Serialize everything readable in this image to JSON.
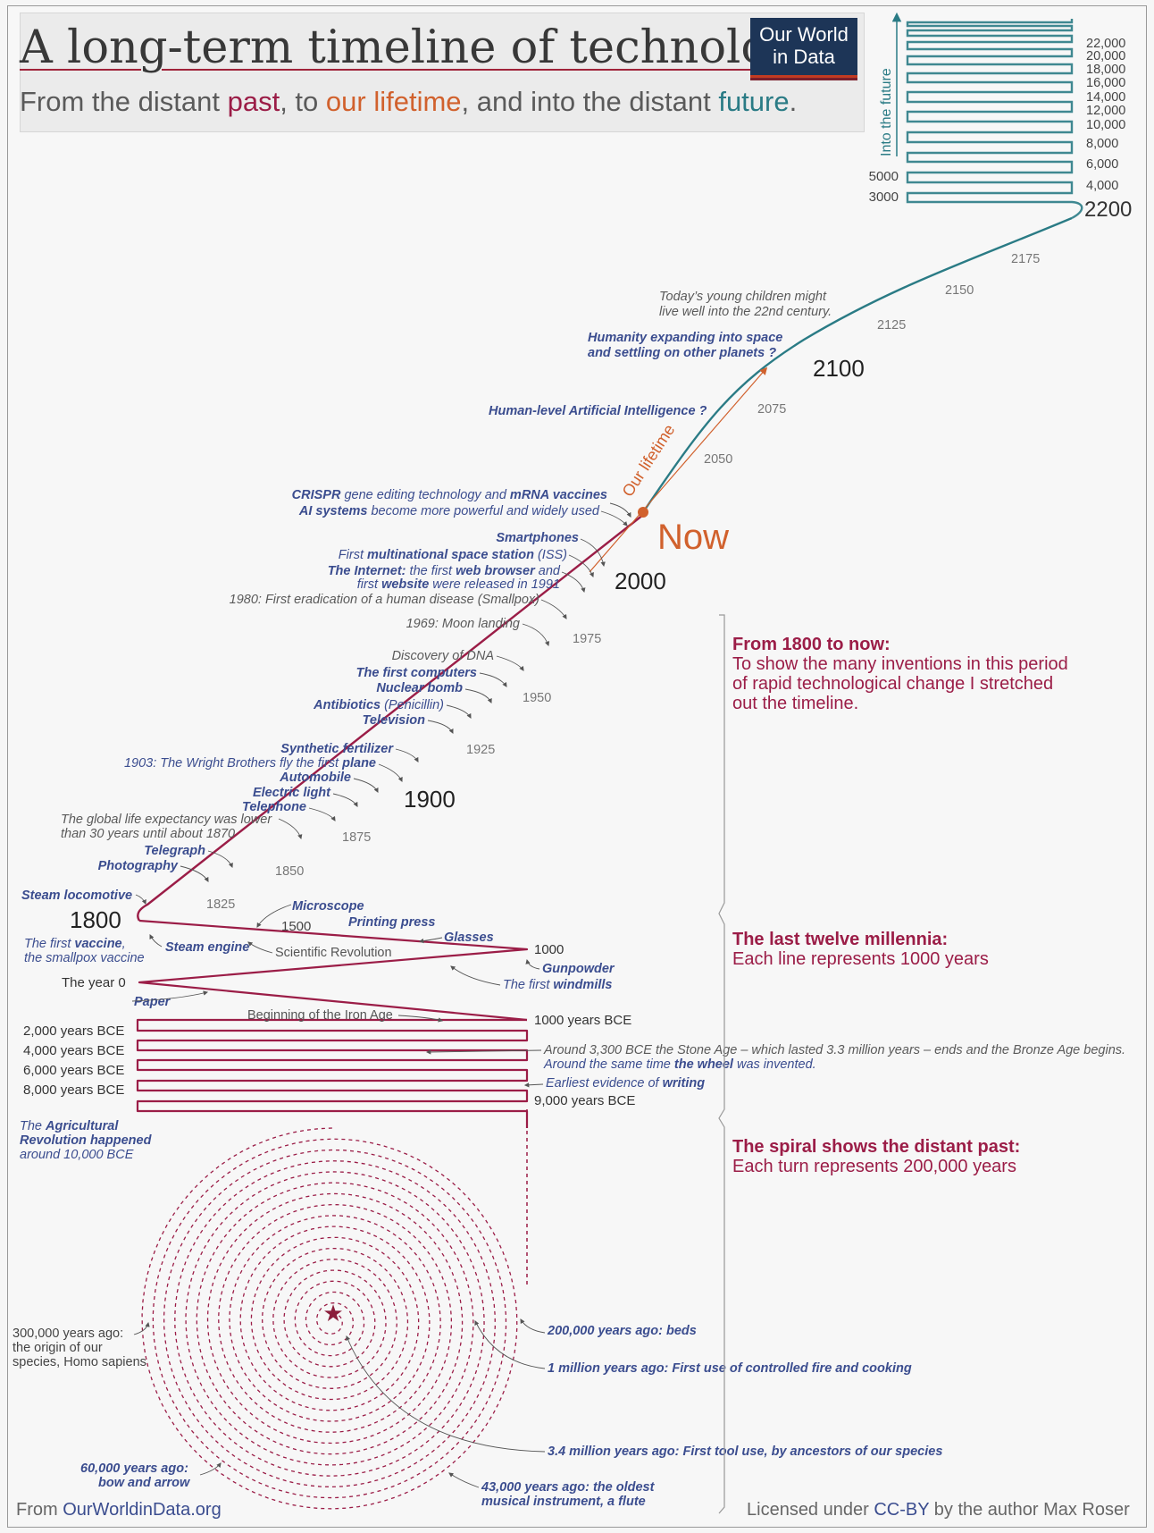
{
  "header": {
    "title": "A long-term timeline of technology",
    "subtitle_parts": [
      "From the distant ",
      "past",
      ", to ",
      "our lifetime",
      ", and into the distant ",
      "future",
      "."
    ],
    "logo_line1": "Our World",
    "logo_line2": "in Data"
  },
  "colors": {
    "past": "#9b1d47",
    "lifetime": "#d1612d",
    "future": "#2a7b85",
    "label_blue": "#3b4d8f",
    "label_grey": "#5a5a5a"
  },
  "future_axis": {
    "label": "Into the future",
    "right_ticks": [
      "22,000",
      "20,000",
      "18,000",
      "16,000",
      "14,000",
      "12,000",
      "10,000",
      "8,000",
      "6,000",
      "4,000"
    ],
    "left_ticks": [
      "5000",
      "3000"
    ],
    "end_label": "2200"
  },
  "main_years": {
    "y1800": "1800",
    "y1900": "1900",
    "y2000": "2000",
    "y2100": "2100",
    "now": "Now"
  },
  "minor_years": [
    "1825",
    "1850",
    "1875",
    "1925",
    "1950",
    "1975",
    "2050",
    "2075",
    "2125",
    "2150",
    "2175"
  ],
  "lifetime_label": "Our lifetime",
  "future_events": {
    "children_1": "Today’s young children might",
    "children_2": "live well into the 22nd century.",
    "space_1": "Humanity expanding into space",
    "space_2": "and settling on other planets ?",
    "ai": "Human-level Artificial Intelligence ?"
  },
  "recent_events": {
    "crispr_bold1": "CRISPR",
    "crispr_rest1": " gene editing technology and ",
    "crispr_bold2": "mRNA vaccines",
    "ai_bold": "AI systems",
    "ai_rest": " become more powerful and widely used",
    "smartphones": "Smartphones",
    "iss_pre": "First ",
    "iss_bold": "multinational space station",
    "iss_post": " (ISS)",
    "internet_bold": "The Internet:",
    "internet_mid": " the first ",
    "internet_bold2": "web browser",
    "internet_end": " and",
    "website_pre": "first ",
    "website_bold": "website",
    "website_post": " were released in 1991",
    "smallpox": "1980: First eradication of a human disease (Smallpox)",
    "moon": "1969: Moon landing",
    "dna": "Discovery of DNA",
    "computers": "The first computers",
    "nuclear": "Nuclear bomb",
    "antibiotics_bold": "Antibiotics",
    "antibiotics_rest": " (Penicillin)",
    "television": "Television",
    "fertilizer": "Synthetic fertilizer",
    "wright_pre": "1903: The Wright Brothers fly the first ",
    "wright_bold": "plane",
    "automobile": "Automobile",
    "electric": "Electric light",
    "telephone": "Telephone",
    "life_exp_1": "The global life expectancy was lower",
    "life_exp_2": "than 30 years until about 1870",
    "telegraph": "Telegraph",
    "photography": "Photography",
    "steam_loco": "Steam locomotive"
  },
  "millennia_events": {
    "microscope": "Microscope",
    "printing": "Printing press",
    "y1500": "1500",
    "glasses": "Glasses",
    "vaccine_pre": "The first ",
    "vaccine_bold": "vaccine",
    "vaccine_post": ",",
    "vaccine_2": "the smallpox vaccine",
    "steam_engine": "Steam engine",
    "sci_rev": "Scientific Revolution",
    "y1000": "1000",
    "gunpowder": "Gunpowder",
    "windmills_pre": "The first ",
    "windmills_bold": "windmills",
    "year0": "The year 0",
    "paper": "Paper",
    "iron_age": "Beginning of the Iron Age",
    "bce1000": "1000 years BCE",
    "bce2000": "2,000 years BCE",
    "bce4000": "4,000 years BCE",
    "bce6000": "6,000 years BCE",
    "bce8000": "8,000 years BCE",
    "bce9000": "9,000 years BCE",
    "stone_age_1": "Around 3,300 BCE the Stone Age – which lasted 3.3 million years – ends and the Bronze Age begins.",
    "wheel_pre": "Around the same time ",
    "wheel_bold": "the wheel",
    "wheel_post": " was invented.",
    "writing_pre": "Earliest evidence of ",
    "writing_bold": "writing",
    "agri_pre": "The ",
    "agri_bold": "Agricultural",
    "agri_2": "Revolution happened",
    "agri_3": "around 10,000 BCE"
  },
  "spiral_events": {
    "homo_1": "300,000 years ago:",
    "homo_2": "the origin of our",
    "homo_3": "species, Homo sapiens",
    "beds": "200,000 years ago: beds",
    "fire": "1 million years ago: First use of controlled fire and cooking",
    "tools": "3.4 million years ago: First tool use, by ancestors of our species",
    "bow_1": "60,000 years ago:",
    "bow_2": "bow and arrow",
    "flute_1": "43,000 years ago: the oldest",
    "flute_2": "musical instrument, a flute"
  },
  "sections": {
    "s1_title": "From 1800 to now:",
    "s1_l1": "To show the many inventions in this period",
    "s1_l2": "of rapid technological change I stretched",
    "s1_l3": "out the timeline.",
    "s2_title": "The last twelve millennia:",
    "s2_l1": "Each line represents 1000 years",
    "s3_title": "The spiral shows the distant past:",
    "s3_l1": "Each turn represents 200,000 years"
  },
  "footer": {
    "left_pre": "From ",
    "left_link": "OurWorldinData.org",
    "right_pre": "Licensed under ",
    "right_link": "CC-BY",
    "right_post": " by the author Max Roser"
  }
}
